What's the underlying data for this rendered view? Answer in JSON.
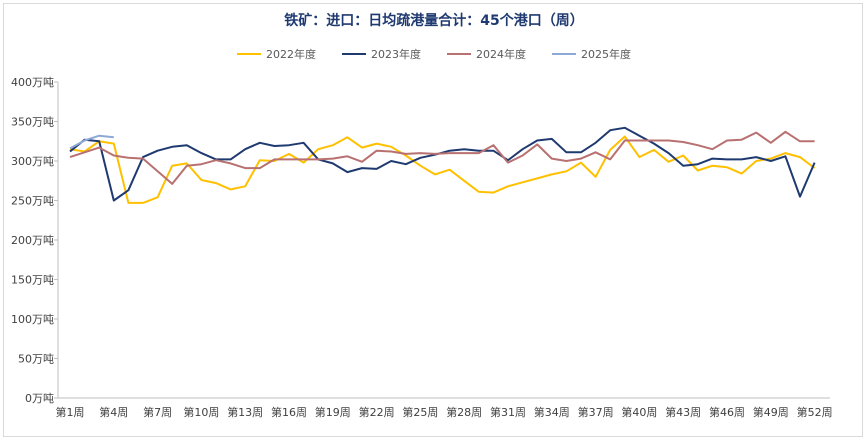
{
  "chart_data": {
    "type": "line",
    "title": "铁矿：进口：日均疏港量合计：45个港口（周）",
    "ylim": [
      0,
      400
    ],
    "yticks": [
      "0万吨",
      "50万吨",
      "100万吨",
      "150万吨",
      "200万吨",
      "250万吨",
      "300万吨",
      "350万吨",
      "400万吨"
    ],
    "xticks": [
      "第1周",
      "第4周",
      "第7周",
      "第10周",
      "第13周",
      "第16周",
      "第19周",
      "第22周",
      "第25周",
      "第28周",
      "第31周",
      "第34周",
      "第37周",
      "第40周",
      "第43周",
      "第46周",
      "第49周",
      "第52周"
    ],
    "legend_position": "top",
    "grid": false,
    "series": [
      {
        "name": "2022年度",
        "color": "#FFC000",
        "values": [
          315,
          312,
          325,
          322,
          247,
          247,
          254,
          294,
          297,
          276,
          272,
          264,
          268,
          301,
          300,
          309,
          298,
          315,
          320,
          330,
          317,
          322,
          318,
          307,
          294,
          283,
          289,
          275,
          261,
          260,
          268,
          273,
          278,
          283,
          287,
          298,
          280,
          314,
          331,
          305,
          314,
          299,
          307,
          288,
          294,
          292,
          284,
          300,
          303,
          310,
          305,
          291
        ]
      },
      {
        "name": "2023年度",
        "color": "#1F3A70",
        "values": [
          312,
          327,
          325,
          250,
          263,
          305,
          313,
          318,
          320,
          310,
          302,
          302,
          315,
          323,
          319,
          320,
          323,
          302,
          297,
          286,
          291,
          290,
          300,
          296,
          304,
          308,
          313,
          315,
          313,
          313,
          301,
          315,
          326,
          328,
          311,
          311,
          323,
          339,
          342,
          332,
          322,
          310,
          294,
          296,
          303,
          302,
          302,
          305,
          300,
          306,
          255,
          298
        ]
      },
      {
        "name": "2024年度",
        "color": "#B87070",
        "values": [
          305,
          311,
          317,
          307,
          304,
          303,
          287,
          271,
          294,
          296,
          301,
          297,
          291,
          291,
          302,
          302,
          302,
          302,
          303,
          306,
          299,
          313,
          312,
          309,
          310,
          309,
          310,
          310,
          310,
          320,
          298,
          307,
          321,
          303,
          300,
          303,
          311,
          302,
          326,
          326,
          326,
          326,
          324,
          320,
          315,
          326,
          327,
          336,
          323,
          337,
          325,
          325
        ]
      },
      {
        "name": "2025年度",
        "color": "#8FA9D6",
        "values": [
          316,
          326,
          332,
          330
        ]
      }
    ]
  }
}
